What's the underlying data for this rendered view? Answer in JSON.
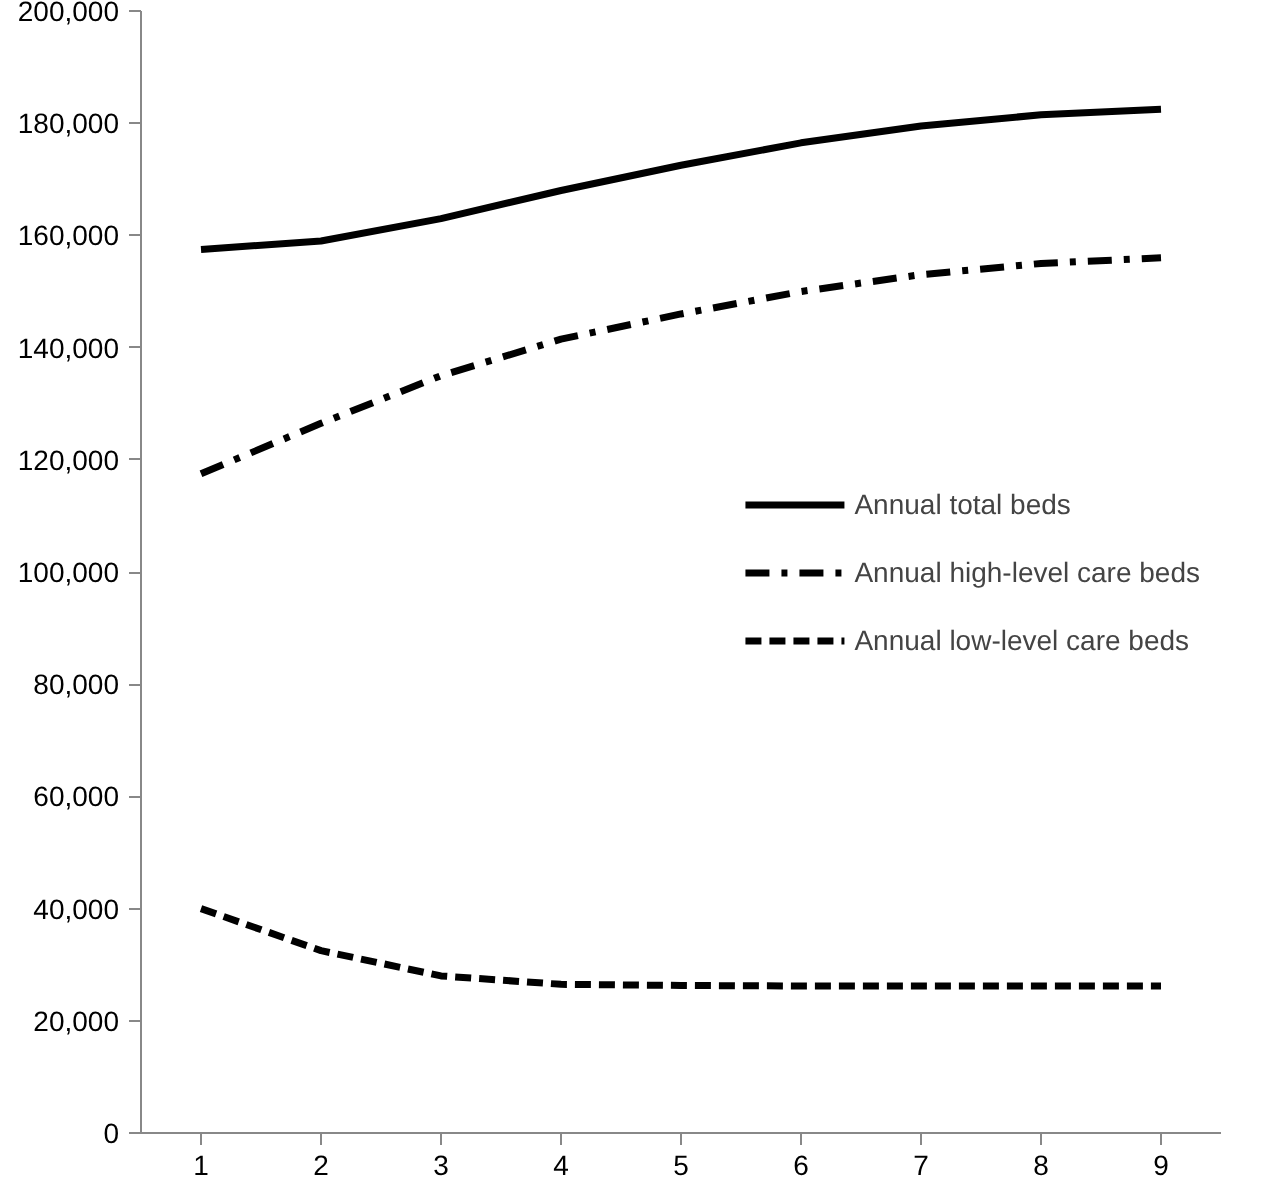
{
  "chart_data": {
    "type": "line",
    "categories": [
      "1",
      "2",
      "3",
      "4",
      "5",
      "6",
      "7",
      "8",
      "9"
    ],
    "ylim": [
      0,
      200000
    ],
    "yticks": [
      {
        "value": 0,
        "label": "0"
      },
      {
        "value": 20000,
        "label": "20,000"
      },
      {
        "value": 40000,
        "label": "40,000"
      },
      {
        "value": 60000,
        "label": "60,000"
      },
      {
        "value": 80000,
        "label": "80,000"
      },
      {
        "value": 100000,
        "label": "100,000"
      },
      {
        "value": 120000,
        "label": "120,000"
      },
      {
        "value": 140000,
        "label": "140,000"
      },
      {
        "value": 160000,
        "label": "160,000"
      },
      {
        "value": 180000,
        "label": "180,000"
      },
      {
        "value": 200000,
        "label": "200,000"
      }
    ],
    "grid": false,
    "legend": "center right",
    "marker": "none",
    "series": [
      {
        "name": "Annual total beds",
        "color": "#000000",
        "line_style": "solid",
        "values": [
          157500,
          159000,
          163000,
          168000,
          172500,
          176500,
          179500,
          181500,
          182500
        ]
      },
      {
        "name": "Annual high-level care beds",
        "color": "#000000",
        "line_style": "dashdot",
        "values": [
          117500,
          126500,
          135000,
          141500,
          146000,
          150000,
          153000,
          155000,
          156000
        ]
      },
      {
        "name": "Annual low-level care beds",
        "color": "#000000",
        "line_style": "dashed",
        "values": [
          40000,
          32500,
          28000,
          26500,
          26300,
          26200,
          26200,
          26200,
          26200
        ]
      }
    ]
  }
}
